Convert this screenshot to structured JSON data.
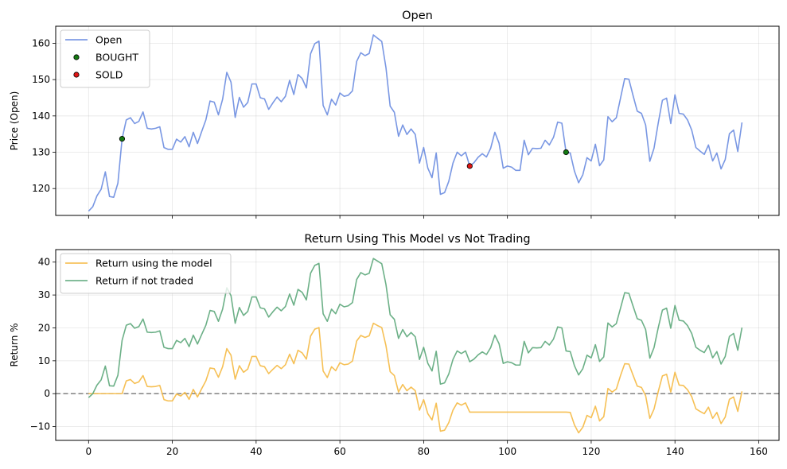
{
  "chart_data": [
    {
      "type": "line",
      "title": "Open",
      "xlabel": "",
      "ylabel": "Price (Open)",
      "xlim": [
        -7.85,
        164.85
      ],
      "ylim": [
        112.6,
        164.7
      ],
      "yticks": [
        120,
        130,
        140,
        150,
        160
      ],
      "xticks": [
        0,
        20,
        40,
        60,
        80,
        100,
        120,
        140,
        160
      ],
      "show_xtick_labels": false,
      "grid": true,
      "legend_position": "upper-left",
      "series": [
        {
          "name": "Open",
          "color": "#6a8ce0",
          "values": [
            113.8,
            115.0,
            118.0,
            119.8,
            124.6,
            117.8,
            117.6,
            121.5,
            133.7,
            138.9,
            139.5,
            137.9,
            138.5,
            141.1,
            136.6,
            136.4,
            136.6,
            137.0,
            131.3,
            130.8,
            130.8,
            133.6,
            132.8,
            134.3,
            131.5,
            135.5,
            132.4,
            135.7,
            138.9,
            144.1,
            143.8,
            140.3,
            144.6,
            152.0,
            149.3,
            139.6,
            145.1,
            142.4,
            143.7,
            148.8,
            148.8,
            145.0,
            144.7,
            141.8,
            143.6,
            145.2,
            143.9,
            145.4,
            149.8,
            145.9,
            151.4,
            150.3,
            147.7,
            157.1,
            159.9,
            160.6,
            142.9,
            140.3,
            144.6,
            143.0,
            146.3,
            145.4,
            145.7,
            146.9,
            155.0,
            157.4,
            156.6,
            157.2,
            162.3,
            161.4,
            160.5,
            153.3,
            142.7,
            141.0,
            134.4,
            137.5,
            134.9,
            136.4,
            134.9,
            127.0,
            131.3,
            125.6,
            123.0,
            129.8,
            118.4,
            118.9,
            122.0,
            127.0,
            130.0,
            129.0,
            130.0,
            126.2,
            127.1,
            128.6,
            129.6,
            128.7,
            131.1,
            135.5,
            132.5,
            125.6,
            126.2,
            125.9,
            125.0,
            125.0,
            133.3,
            129.3,
            131.1,
            131.0,
            131.1,
            133.3,
            132.0,
            134.1,
            138.3,
            138.0,
            130.0,
            129.8,
            124.8,
            121.6,
            123.8,
            128.5,
            127.6,
            132.2,
            126.3,
            127.9,
            139.8,
            138.4,
            139.5,
            144.9,
            150.3,
            150.1,
            145.6,
            141.3,
            140.7,
            137.5,
            127.5,
            131.1,
            138.0,
            144.3,
            144.9,
            137.9,
            145.8,
            140.7,
            140.5,
            138.9,
            136.1,
            131.3,
            130.3,
            129.4,
            132.0,
            127.6,
            129.8,
            125.4,
            128.0,
            135.1,
            136.1,
            130.2,
            138.2
          ]
        }
      ],
      "markers": [
        {
          "name": "BOUGHT",
          "color": "#157a12",
          "points": [
            {
              "x": 8,
              "y": 133.7
            },
            {
              "x": 114,
              "y": 130.0
            }
          ]
        },
        {
          "name": "SOLD",
          "color": "#e01515",
          "points": [
            {
              "x": 91,
              "y": 126.2
            }
          ]
        }
      ]
    },
    {
      "type": "line",
      "title": "Return Using This Model vs Not Trading",
      "xlabel": "",
      "ylabel": "Return %",
      "xlim": [
        -7.85,
        164.85
      ],
      "ylim": [
        -14.2,
        43.8
      ],
      "yticks": [
        -10,
        0,
        10,
        20,
        30,
        40
      ],
      "xticks": [
        0,
        20,
        40,
        60,
        80,
        100,
        120,
        140,
        160
      ],
      "show_xtick_labels": true,
      "grid": true,
      "legend_position": "upper-left",
      "reference_line": {
        "y": 0,
        "color": "#808080"
      },
      "series": [
        {
          "name": "Return using the model",
          "color": "#f5b942",
          "values": [
            0,
            0,
            0,
            0,
            0,
            0,
            0,
            0,
            0,
            3.9,
            4.3,
            3.1,
            3.6,
            5.5,
            2.2,
            2.1,
            2.2,
            2.5,
            -1.8,
            -2.2,
            -2.2,
            -0.1,
            -0.7,
            0.4,
            -1.7,
            1.3,
            -1.0,
            1.5,
            3.9,
            7.8,
            7.6,
            5.0,
            8.2,
            13.7,
            11.7,
            4.4,
            8.5,
            6.5,
            7.5,
            11.3,
            11.3,
            8.5,
            8.2,
            6.1,
            7.4,
            8.6,
            7.6,
            8.8,
            12.0,
            9.1,
            13.2,
            12.4,
            10.5,
            17.5,
            19.6,
            20.1,
            6.9,
            4.9,
            8.2,
            7.0,
            9.4,
            8.8,
            9.0,
            9.9,
            16.0,
            17.7,
            17.1,
            17.6,
            21.4,
            20.7,
            20.1,
            14.6,
            6.7,
            5.5,
            0.5,
            2.8,
            0.9,
            2.0,
            0.9,
            -5.0,
            -1.8,
            -6.1,
            -8.0,
            -2.9,
            -11.4,
            -11.1,
            -8.8,
            -5.0,
            -2.8,
            -3.5,
            -2.8,
            -5.6,
            -5.6,
            -5.6,
            -5.6,
            -5.6,
            -5.6,
            -5.6,
            -5.6,
            -5.6,
            -5.6,
            -5.6,
            -5.6,
            -5.6,
            -5.6,
            -5.6,
            -5.6,
            -5.6,
            -5.6,
            -5.6,
            -5.6,
            -5.6,
            -5.6,
            -5.6,
            -5.6,
            -5.7,
            -9.5,
            -11.9,
            -10.2,
            -6.6,
            -7.3,
            -3.8,
            -8.3,
            -7.0,
            1.6,
            0.5,
            1.4,
            5.5,
            9.1,
            9.0,
            5.6,
            2.3,
            1.9,
            -0.6,
            -7.5,
            -4.7,
            0.6,
            5.4,
            5.9,
            0.5,
            6.5,
            2.6,
            2.5,
            1.2,
            -0.9,
            -4.6,
            -5.4,
            -6.1,
            -4.1,
            -7.5,
            -5.7,
            -9.1,
            -7.1,
            -1.7,
            -1.0,
            -5.4,
            0.7
          ]
        },
        {
          "name": "Return if not traded",
          "color": "#5ca77a",
          "values": [
            -1.2,
            0.0,
            2.6,
            4.2,
            8.4,
            2.4,
            2.3,
            5.6,
            16.2,
            20.8,
            21.3,
            19.9,
            20.4,
            22.7,
            18.7,
            18.6,
            18.7,
            19.1,
            14.1,
            13.7,
            13.7,
            16.2,
            15.5,
            16.8,
            14.3,
            17.8,
            15.1,
            18.0,
            20.8,
            25.3,
            25.0,
            22.0,
            25.7,
            32.2,
            29.8,
            21.4,
            26.2,
            23.8,
            25.0,
            29.4,
            29.4,
            26.1,
            25.8,
            23.3,
            24.9,
            26.3,
            25.2,
            26.5,
            30.3,
            26.9,
            31.7,
            30.8,
            28.5,
            36.6,
            39.0,
            39.6,
            24.3,
            22.0,
            25.7,
            24.3,
            27.2,
            26.4,
            26.7,
            27.7,
            34.7,
            36.8,
            36.1,
            36.6,
            41.1,
            40.3,
            39.5,
            33.2,
            24.0,
            22.6,
            16.8,
            19.5,
            17.3,
            18.6,
            17.3,
            10.4,
            14.1,
            9.2,
            6.9,
            12.9,
            2.9,
            3.3,
            6.0,
            10.4,
            13.0,
            12.2,
            13.0,
            9.7,
            10.5,
            11.8,
            12.7,
            11.9,
            14.0,
            17.8,
            15.2,
            9.2,
            9.7,
            9.4,
            8.7,
            8.7,
            15.9,
            12.4,
            14.0,
            13.9,
            14.0,
            15.9,
            14.8,
            16.6,
            20.3,
            20.0,
            13.0,
            12.8,
            8.5,
            5.7,
            7.6,
            11.7,
            10.9,
            14.9,
            9.8,
            11.2,
            21.5,
            20.3,
            21.3,
            26.0,
            30.7,
            30.5,
            26.6,
            22.8,
            22.3,
            19.5,
            10.8,
            14.0,
            20.0,
            25.4,
            26.0,
            19.9,
            26.8,
            22.3,
            22.1,
            20.7,
            18.3,
            14.1,
            13.2,
            12.5,
            14.7,
            10.9,
            12.8,
            9.0,
            11.3,
            17.4,
            18.3,
            13.2,
            20.1
          ]
        }
      ]
    }
  ]
}
